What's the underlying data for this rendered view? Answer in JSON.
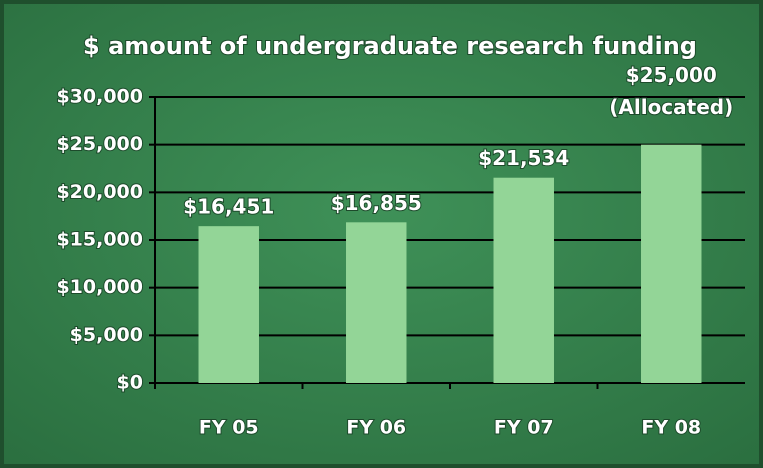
{
  "chart_data": {
    "type": "bar",
    "title": "$ amount of undergraduate research funding",
    "categories": [
      "FY 05",
      "FY 06",
      "FY 07",
      "FY 08"
    ],
    "values": [
      16451,
      16855,
      21534,
      25000
    ],
    "value_labels": [
      "$16,451",
      "$16,855",
      "$21,534",
      "$25,000"
    ],
    "annotations": [
      "(Allocated)"
    ],
    "color": "#93d597",
    "ylim": [
      0,
      30000
    ],
    "yticks": [
      {
        "value": 0,
        "label": "$0"
      },
      {
        "value": 5000,
        "label": "$5,000"
      },
      {
        "value": 10000,
        "label": "$10,000"
      },
      {
        "value": 15000,
        "label": "$15,000"
      },
      {
        "value": 20000,
        "label": "$20,000"
      },
      {
        "value": 25000,
        "label": "$25,000"
      },
      {
        "value": 30000,
        "label": "$30,000"
      }
    ],
    "grid": true
  }
}
